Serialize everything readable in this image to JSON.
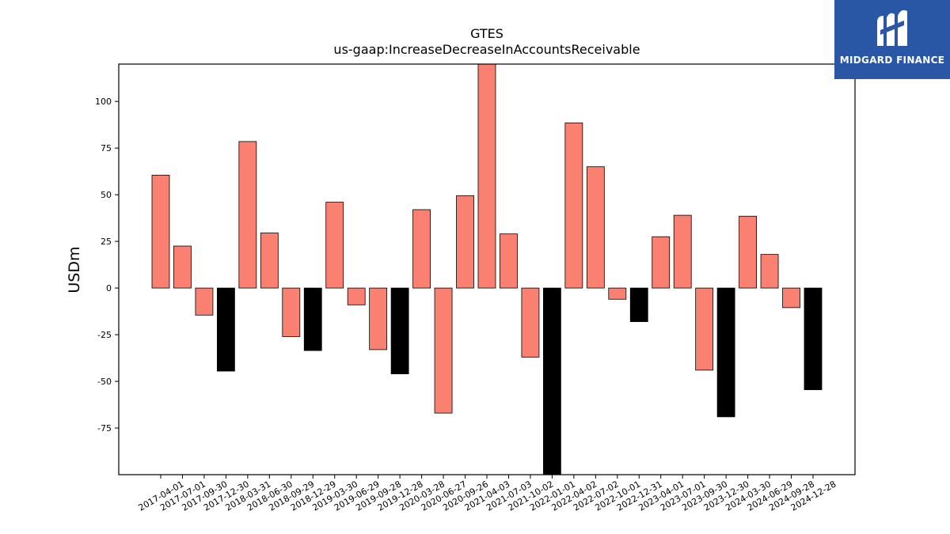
{
  "chart_data": {
    "type": "bar",
    "title": "GTES",
    "subtitle": "us-gaap:IncreaseDecreaseInAccountsReceivable",
    "ylabel": "USDm",
    "xlabel": "",
    "ylim": [
      -100,
      120
    ],
    "yticks": [
      -75,
      -50,
      -25,
      0,
      25,
      50,
      75,
      100
    ],
    "grid": false,
    "colors": {
      "quarter": "#fa8072",
      "year_end": "#000000"
    },
    "categories": [
      "2017-04-01",
      "2017-07-01",
      "2017-09-30",
      "2017-12-30",
      "2018-03-31",
      "2018-06-30",
      "2018-09-29",
      "2018-12-29",
      "2019-03-30",
      "2019-06-29",
      "2019-09-28",
      "2019-12-28",
      "2020-03-28",
      "2020-06-27",
      "2020-09-26",
      "2021-04-03",
      "2021-07-03",
      "2021-10-02",
      "2022-01-01",
      "2022-04-02",
      "2022-07-02",
      "2022-10-01",
      "2022-12-31",
      "2023-04-01",
      "2023-07-01",
      "2023-09-30",
      "2023-12-30",
      "2024-03-30",
      "2024-06-29",
      "2024-09-28",
      "2024-12-28"
    ],
    "values": [
      60.5,
      22.5,
      -14.5,
      -44.5,
      78.5,
      29.5,
      -26,
      -33.5,
      46,
      -9,
      -33,
      -46,
      42,
      -67,
      49.5,
      120,
      29,
      -37,
      -100,
      88.5,
      65,
      -6,
      -18,
      27.5,
      39,
      -44,
      -69,
      38.5,
      18,
      -10.5,
      -54.5
    ],
    "year_end": [
      false,
      false,
      false,
      true,
      false,
      false,
      false,
      true,
      false,
      false,
      false,
      true,
      false,
      false,
      false,
      false,
      false,
      false,
      true,
      false,
      false,
      false,
      true,
      false,
      false,
      false,
      true,
      false,
      false,
      false,
      true
    ]
  },
  "logo": {
    "text": "MIDGARD FINANCE",
    "icon": "midgard-logo-icon",
    "color": "#2a56a6"
  }
}
